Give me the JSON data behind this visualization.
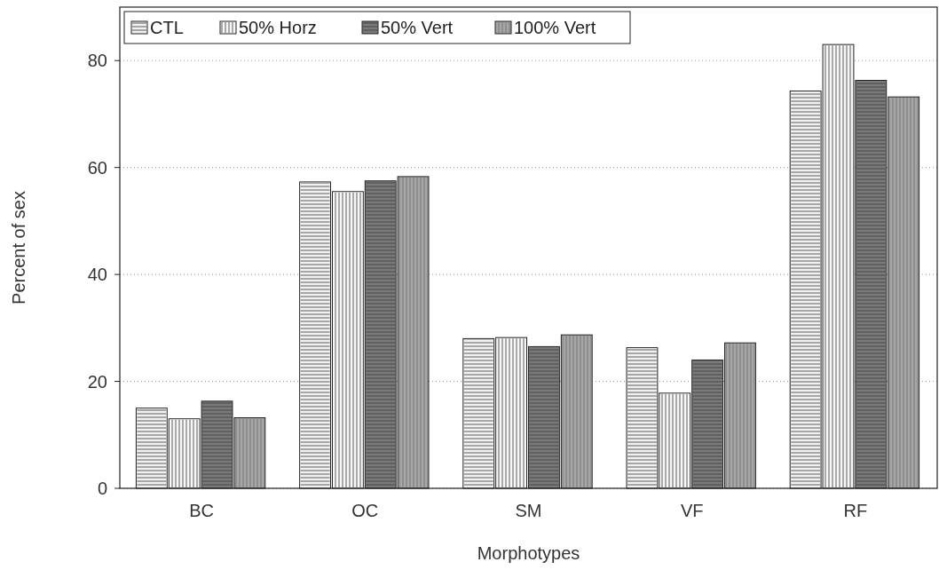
{
  "chart_data": {
    "type": "bar",
    "xlabel": "Morphotypes",
    "ylabel": "Percent of sex",
    "categories": [
      "BC",
      "OC",
      "SM",
      "VF",
      "RF"
    ],
    "series": [
      {
        "name": "CTL",
        "color": "#f2f2f2",
        "values": [
          15,
          57.3,
          28,
          26.3,
          74.3
        ]
      },
      {
        "name": "50% Horz",
        "color": "#f7f7f7",
        "values": [
          13,
          55.5,
          28.2,
          17.8,
          83
        ]
      },
      {
        "name": "50% Vert",
        "color": "#7a7a7a",
        "values": [
          16.3,
          57.5,
          26.5,
          24,
          76.3
        ]
      },
      {
        "name": "100% Vert",
        "color": "#a6a6a6",
        "values": [
          13.2,
          58.3,
          28.7,
          27.2,
          73.2
        ]
      }
    ],
    "ylim": [
      0,
      90
    ],
    "yticks": [
      0,
      20,
      40,
      60,
      80
    ],
    "grid": "y",
    "legend": "top left"
  }
}
